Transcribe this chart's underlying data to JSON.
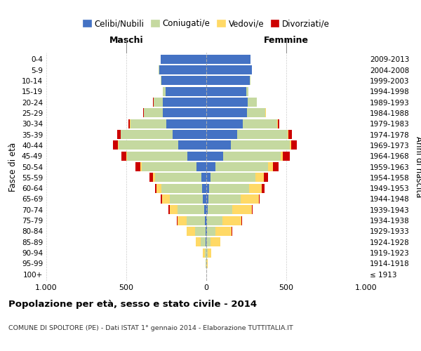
{
  "age_groups": [
    "100+",
    "95-99",
    "90-94",
    "85-89",
    "80-84",
    "75-79",
    "70-74",
    "65-69",
    "60-64",
    "55-59",
    "50-54",
    "45-49",
    "40-44",
    "35-39",
    "30-34",
    "25-29",
    "20-24",
    "15-19",
    "10-14",
    "5-9",
    "0-4"
  ],
  "anni_nascita": [
    "≤ 1913",
    "1914-1918",
    "1919-1923",
    "1924-1928",
    "1929-1933",
    "1934-1938",
    "1939-1943",
    "1944-1948",
    "1949-1953",
    "1954-1958",
    "1959-1963",
    "1964-1968",
    "1969-1973",
    "1974-1978",
    "1979-1983",
    "1984-1988",
    "1989-1993",
    "1994-1998",
    "1999-2003",
    "2004-2008",
    "2009-2013"
  ],
  "male_celibi": [
    0,
    0,
    2,
    4,
    6,
    8,
    15,
    20,
    25,
    30,
    60,
    120,
    175,
    210,
    250,
    270,
    270,
    255,
    280,
    295,
    285
  ],
  "male_coniugati": [
    0,
    3,
    8,
    30,
    65,
    115,
    165,
    210,
    255,
    290,
    345,
    375,
    375,
    325,
    225,
    120,
    60,
    15,
    5,
    2,
    1
  ],
  "male_vedovi": [
    0,
    2,
    10,
    30,
    50,
    55,
    50,
    45,
    30,
    15,
    8,
    5,
    3,
    2,
    1,
    0,
    0,
    0,
    0,
    0,
    0
  ],
  "male_divorziati": [
    0,
    0,
    0,
    1,
    2,
    5,
    8,
    8,
    12,
    22,
    28,
    32,
    32,
    22,
    12,
    4,
    2,
    0,
    0,
    0,
    0
  ],
  "female_nubili": [
    0,
    0,
    2,
    2,
    4,
    5,
    8,
    12,
    18,
    28,
    55,
    105,
    155,
    195,
    230,
    255,
    260,
    250,
    270,
    285,
    275
  ],
  "female_coniugate": [
    0,
    2,
    8,
    25,
    55,
    95,
    155,
    205,
    250,
    280,
    330,
    360,
    365,
    315,
    215,
    115,
    55,
    12,
    5,
    2,
    1
  ],
  "female_vedove": [
    2,
    6,
    22,
    60,
    100,
    120,
    120,
    110,
    80,
    50,
    30,
    15,
    10,
    5,
    2,
    1,
    0,
    0,
    0,
    0,
    0
  ],
  "female_divorziate": [
    0,
    0,
    0,
    1,
    2,
    4,
    6,
    8,
    14,
    26,
    36,
    42,
    36,
    22,
    10,
    3,
    1,
    0,
    0,
    0,
    0
  ],
  "color_celibi": "#4472c4",
  "color_coniugati": "#c5d9a0",
  "color_vedovi": "#ffd966",
  "color_divorziati": "#cc0000",
  "title": "Popolazione per età, sesso e stato civile - 2014",
  "subtitle": "COMUNE DI SPOLTORE (PE) - Dati ISTAT 1° gennaio 2014 - Elaborazione TUTTITALIA.IT",
  "label_maschi": "Maschi",
  "label_femmine": "Femmine",
  "label_fasce": "Fasce di età",
  "label_anni": "Anni di nascita",
  "legend_labels": [
    "Celibi/Nubili",
    "Coniugati/e",
    "Vedovi/e",
    "Divorziati/e"
  ],
  "xlim": 1000,
  "bg_color": "#ffffff"
}
